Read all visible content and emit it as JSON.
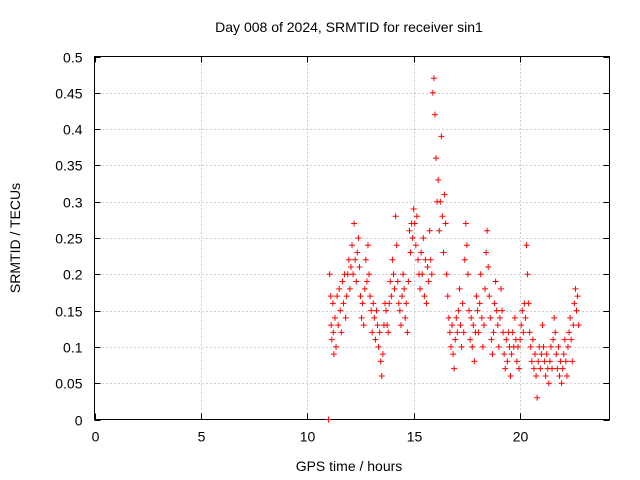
{
  "chart_data": {
    "type": "scatter",
    "title": "Day 008 of 2024, SRMTID for receiver sin1",
    "xlabel": "GPS time / hours",
    "ylabel": "SRMTID / TECUs",
    "xlim": [
      0,
      24.2
    ],
    "ylim": [
      0,
      0.5
    ],
    "xticks": [
      0,
      5,
      10,
      15,
      20
    ],
    "xtick_labels": [
      "0",
      "5",
      "10",
      "15",
      "20"
    ],
    "yticks": [
      0,
      0.05,
      0.1,
      0.15,
      0.2,
      0.25,
      0.3,
      0.35,
      0.4,
      0.45,
      0.5
    ],
    "ytick_labels": [
      "0",
      "0.05",
      "0.1",
      "0.15",
      "0.2",
      "0.25",
      "0.3",
      "0.35",
      "0.4",
      "0.45",
      "0.5"
    ],
    "grid": true,
    "marker": "+",
    "color": "#ff0000",
    "series": [
      {
        "name": "sin1",
        "points": [
          [
            11.0,
            0.0
          ],
          [
            11.05,
            0.2
          ],
          [
            11.1,
            0.17
          ],
          [
            11.12,
            0.13
          ],
          [
            11.15,
            0.11
          ],
          [
            11.2,
            0.16
          ],
          [
            11.22,
            0.12
          ],
          [
            11.25,
            0.09
          ],
          [
            11.3,
            0.14
          ],
          [
            11.35,
            0.1
          ],
          [
            11.4,
            0.17
          ],
          [
            11.45,
            0.13
          ],
          [
            11.5,
            0.18
          ],
          [
            11.55,
            0.15
          ],
          [
            11.6,
            0.12
          ],
          [
            11.65,
            0.19
          ],
          [
            11.7,
            0.16
          ],
          [
            11.75,
            0.2
          ],
          [
            11.8,
            0.14
          ],
          [
            11.85,
            0.17
          ],
          [
            11.9,
            0.2
          ],
          [
            11.95,
            0.22
          ],
          [
            12.0,
            0.18
          ],
          [
            12.05,
            0.21
          ],
          [
            12.1,
            0.24
          ],
          [
            12.15,
            0.2
          ],
          [
            12.2,
            0.27
          ],
          [
            12.25,
            0.22
          ],
          [
            12.3,
            0.19
          ],
          [
            12.35,
            0.23
          ],
          [
            12.4,
            0.25
          ],
          [
            12.45,
            0.21
          ],
          [
            12.5,
            0.17
          ],
          [
            12.55,
            0.14
          ],
          [
            12.6,
            0.16
          ],
          [
            12.65,
            0.13
          ],
          [
            12.7,
            0.18
          ],
          [
            12.75,
            0.22
          ],
          [
            12.8,
            0.19
          ],
          [
            12.85,
            0.24
          ],
          [
            12.9,
            0.2
          ],
          [
            12.95,
            0.17
          ],
          [
            13.0,
            0.15
          ],
          [
            13.05,
            0.12
          ],
          [
            13.1,
            0.16
          ],
          [
            13.15,
            0.14
          ],
          [
            13.2,
            0.11
          ],
          [
            13.25,
            0.15
          ],
          [
            13.3,
            0.13
          ],
          [
            13.35,
            0.1
          ],
          [
            13.4,
            0.12
          ],
          [
            13.45,
            0.08
          ],
          [
            13.5,
            0.06
          ],
          [
            13.55,
            0.09
          ],
          [
            13.6,
            0.13
          ],
          [
            13.65,
            0.16
          ],
          [
            13.7,
            0.15
          ],
          [
            13.75,
            0.13
          ],
          [
            13.8,
            0.12
          ],
          [
            13.85,
            0.16
          ],
          [
            13.9,
            0.19
          ],
          [
            13.95,
            0.17
          ],
          [
            14.0,
            0.22
          ],
          [
            14.05,
            0.2
          ],
          [
            14.1,
            0.18
          ],
          [
            14.15,
            0.28
          ],
          [
            14.2,
            0.24
          ],
          [
            14.25,
            0.19
          ],
          [
            14.3,
            0.16
          ],
          [
            14.35,
            0.15
          ],
          [
            14.4,
            0.13
          ],
          [
            14.45,
            0.17
          ],
          [
            14.5,
            0.2
          ],
          [
            14.55,
            0.18
          ],
          [
            14.6,
            0.14
          ],
          [
            14.65,
            0.16
          ],
          [
            14.7,
            0.12
          ],
          [
            14.75,
            0.19
          ],
          [
            14.8,
            0.26
          ],
          [
            14.85,
            0.23
          ],
          [
            14.9,
            0.27
          ],
          [
            14.95,
            0.25
          ],
          [
            15.0,
            0.29
          ],
          [
            15.05,
            0.27
          ],
          [
            15.1,
            0.24
          ],
          [
            15.15,
            0.28
          ],
          [
            15.2,
            0.22
          ],
          [
            15.25,
            0.2
          ],
          [
            15.3,
            0.18
          ],
          [
            15.35,
            0.23
          ],
          [
            15.4,
            0.2
          ],
          [
            15.45,
            0.25
          ],
          [
            15.5,
            0.17
          ],
          [
            15.55,
            0.22
          ],
          [
            15.6,
            0.16
          ],
          [
            15.65,
            0.21
          ],
          [
            15.7,
            0.19
          ],
          [
            15.75,
            0.26
          ],
          [
            15.8,
            0.22
          ],
          [
            15.85,
            0.2
          ],
          [
            15.9,
            0.45
          ],
          [
            15.95,
            0.47
          ],
          [
            16.0,
            0.42
          ],
          [
            16.05,
            0.36
          ],
          [
            16.1,
            0.3
          ],
          [
            16.15,
            0.33
          ],
          [
            16.2,
            0.26
          ],
          [
            16.25,
            0.3
          ],
          [
            16.3,
            0.39
          ],
          [
            16.35,
            0.28
          ],
          [
            16.4,
            0.23
          ],
          [
            16.45,
            0.31
          ],
          [
            16.5,
            0.27
          ],
          [
            16.55,
            0.2
          ],
          [
            16.6,
            0.17
          ],
          [
            16.65,
            0.14
          ],
          [
            16.7,
            0.12
          ],
          [
            16.75,
            0.1
          ],
          [
            16.8,
            0.13
          ],
          [
            16.85,
            0.09
          ],
          [
            16.9,
            0.07
          ],
          [
            16.95,
            0.11
          ],
          [
            17.0,
            0.14
          ],
          [
            17.05,
            0.12
          ],
          [
            17.1,
            0.15
          ],
          [
            17.15,
            0.18
          ],
          [
            17.2,
            0.13
          ],
          [
            17.25,
            0.1
          ],
          [
            17.3,
            0.16
          ],
          [
            17.35,
            0.12
          ],
          [
            17.4,
            0.22
          ],
          [
            17.45,
            0.27
          ],
          [
            17.5,
            0.24
          ],
          [
            17.55,
            0.2
          ],
          [
            17.6,
            0.15
          ],
          [
            17.65,
            0.11
          ],
          [
            17.7,
            0.14
          ],
          [
            17.75,
            0.1
          ],
          [
            17.8,
            0.13
          ],
          [
            17.85,
            0.08
          ],
          [
            17.9,
            0.12
          ],
          [
            17.95,
            0.17
          ],
          [
            18.0,
            0.15
          ],
          [
            18.05,
            0.12
          ],
          [
            18.1,
            0.16
          ],
          [
            18.15,
            0.2
          ],
          [
            18.2,
            0.14
          ],
          [
            18.25,
            0.1
          ],
          [
            18.3,
            0.13
          ],
          [
            18.35,
            0.18
          ],
          [
            18.4,
            0.23
          ],
          [
            18.45,
            0.26
          ],
          [
            18.5,
            0.21
          ],
          [
            18.55,
            0.17
          ],
          [
            18.6,
            0.14
          ],
          [
            18.65,
            0.11
          ],
          [
            18.7,
            0.09
          ],
          [
            18.75,
            0.12
          ],
          [
            18.8,
            0.16
          ],
          [
            18.85,
            0.19
          ],
          [
            18.9,
            0.15
          ],
          [
            18.95,
            0.13
          ],
          [
            19.0,
            0.1
          ],
          [
            19.05,
            0.14
          ],
          [
            19.1,
            0.18
          ],
          [
            19.15,
            0.15
          ],
          [
            19.2,
            0.12
          ],
          [
            19.25,
            0.09
          ],
          [
            19.3,
            0.07
          ],
          [
            19.35,
            0.11
          ],
          [
            19.4,
            0.08
          ],
          [
            19.45,
            0.12
          ],
          [
            19.5,
            0.1
          ],
          [
            19.55,
            0.06
          ],
          [
            19.6,
            0.09
          ],
          [
            19.65,
            0.12
          ],
          [
            19.7,
            0.1
          ],
          [
            19.75,
            0.14
          ],
          [
            19.8,
            0.11
          ],
          [
            19.85,
            0.08
          ],
          [
            19.9,
            0.1
          ],
          [
            19.95,
            0.07
          ],
          [
            20.0,
            0.11
          ],
          [
            20.05,
            0.13
          ],
          [
            20.1,
            0.15
          ],
          [
            20.15,
            0.12
          ],
          [
            20.2,
            0.16
          ],
          [
            20.25,
            0.14
          ],
          [
            20.3,
            0.24
          ],
          [
            20.35,
            0.2
          ],
          [
            20.4,
            0.16
          ],
          [
            20.45,
            0.12
          ],
          [
            20.5,
            0.1
          ],
          [
            20.55,
            0.08
          ],
          [
            20.6,
            0.11
          ],
          [
            20.65,
            0.07
          ],
          [
            20.7,
            0.09
          ],
          [
            20.75,
            0.06
          ],
          [
            20.8,
            0.03
          ],
          [
            20.85,
            0.08
          ],
          [
            20.9,
            0.1
          ],
          [
            20.95,
            0.07
          ],
          [
            21.0,
            0.09
          ],
          [
            21.05,
            0.13
          ],
          [
            21.1,
            0.1
          ],
          [
            21.15,
            0.08
          ],
          [
            21.2,
            0.06
          ],
          [
            21.25,
            0.09
          ],
          [
            21.3,
            0.07
          ],
          [
            21.35,
            0.05
          ],
          [
            21.4,
            0.08
          ],
          [
            21.45,
            0.1
          ],
          [
            21.5,
            0.07
          ],
          [
            21.55,
            0.11
          ],
          [
            21.6,
            0.14
          ],
          [
            21.65,
            0.12
          ],
          [
            21.7,
            0.09
          ],
          [
            21.75,
            0.07
          ],
          [
            21.8,
            0.1
          ],
          [
            21.85,
            0.06
          ],
          [
            21.9,
            0.08
          ],
          [
            21.95,
            0.05
          ],
          [
            22.0,
            0.07
          ],
          [
            22.05,
            0.09
          ],
          [
            22.1,
            0.11
          ],
          [
            22.15,
            0.08
          ],
          [
            22.2,
            0.06
          ],
          [
            22.25,
            0.1
          ],
          [
            22.3,
            0.12
          ],
          [
            22.35,
            0.14
          ],
          [
            22.4,
            0.11
          ],
          [
            22.45,
            0.08
          ],
          [
            22.5,
            0.13
          ],
          [
            22.55,
            0.16
          ],
          [
            22.6,
            0.18
          ],
          [
            22.65,
            0.15
          ],
          [
            22.7,
            0.17
          ],
          [
            22.75,
            0.13
          ]
        ]
      }
    ]
  }
}
